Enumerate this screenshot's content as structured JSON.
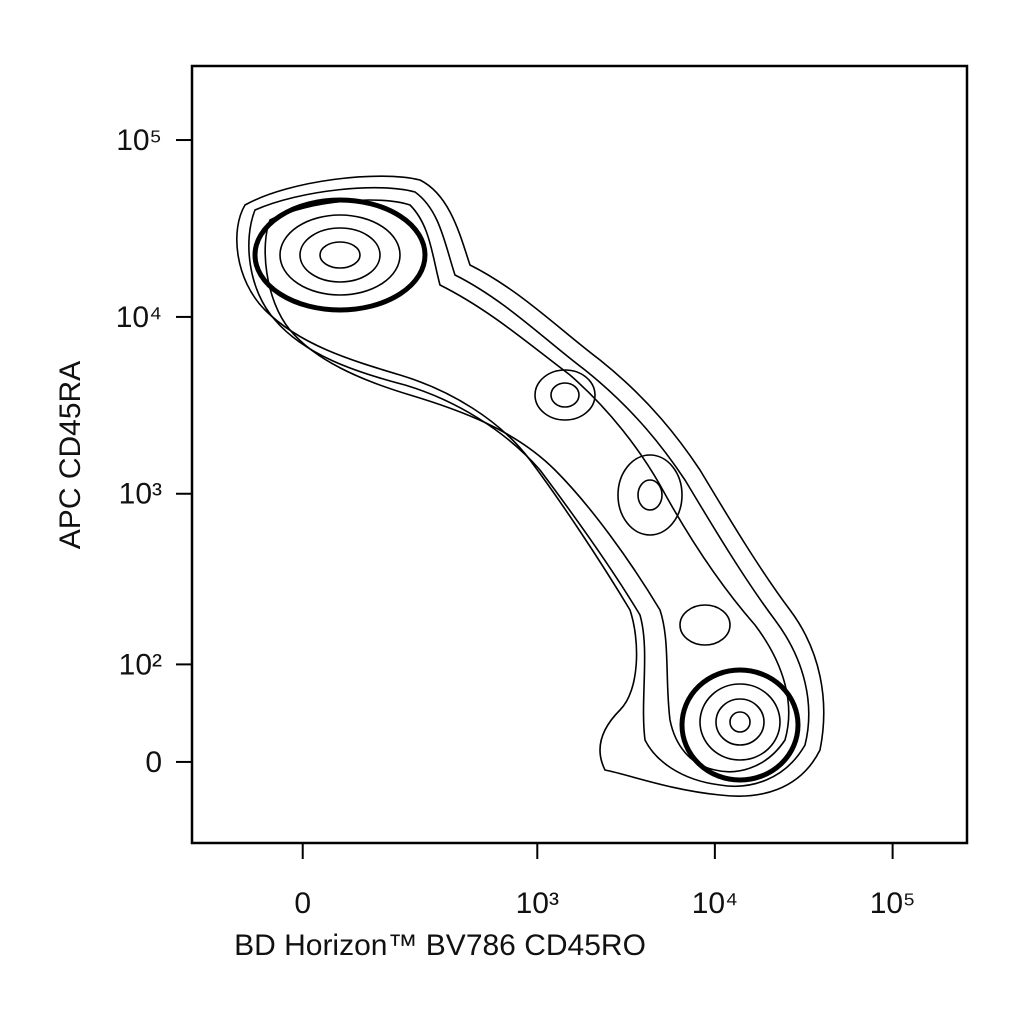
{
  "chart_data": {
    "type": "contour",
    "x_label": "BD Horizon™ BV786 CD45RO",
    "y_label": "APC CD45RA",
    "xscale": "biexponential",
    "yscale": "biexponential",
    "xlim": [
      -190,
      262144
    ],
    "ylim": [
      -77,
      262144
    ],
    "xticks": [
      0,
      {
        "value": 1000,
        "label": "10³"
      },
      {
        "value": 10000,
        "label": "10⁴"
      },
      {
        "value": 100000,
        "label": "10⁵"
      }
    ],
    "yticks": [
      0,
      {
        "value": 100,
        "label": "10²"
      },
      {
        "value": 1000,
        "label": "10³"
      },
      {
        "value": 10000,
        "label": "10⁴"
      },
      {
        "value": 100000,
        "label": "10⁵"
      }
    ]
  }
}
